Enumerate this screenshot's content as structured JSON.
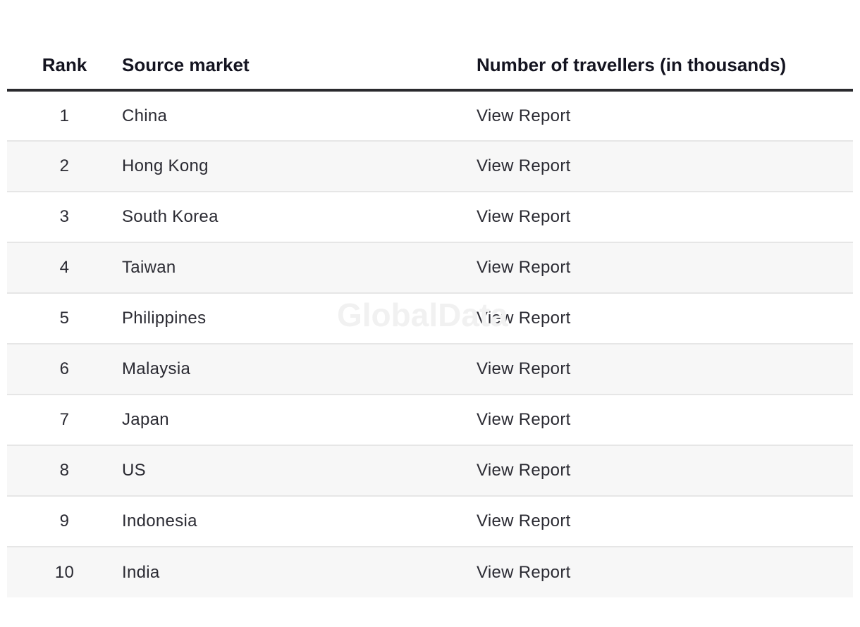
{
  "table": {
    "headers": {
      "rank": "Rank",
      "market": "Source market",
      "travellers": "Number of travellers (in thousands)"
    },
    "rows": [
      {
        "rank": "1",
        "market": "China",
        "travellers": "View Report"
      },
      {
        "rank": "2",
        "market": "Hong Kong",
        "travellers": "View Report"
      },
      {
        "rank": "3",
        "market": "South Korea",
        "travellers": "View Report"
      },
      {
        "rank": "4",
        "market": "Taiwan",
        "travellers": "View Report"
      },
      {
        "rank": "5",
        "market": "Philippines",
        "travellers": "View Report"
      },
      {
        "rank": "6",
        "market": "Malaysia",
        "travellers": "View Report"
      },
      {
        "rank": "7",
        "market": "Japan",
        "travellers": "View Report"
      },
      {
        "rank": "8",
        "market": "US",
        "travellers": "View Report"
      },
      {
        "rank": "9",
        "market": "Indonesia",
        "travellers": "View Report"
      },
      {
        "rank": "10",
        "market": "India",
        "travellers": "View Report"
      }
    ]
  },
  "watermark": "GlobalData"
}
